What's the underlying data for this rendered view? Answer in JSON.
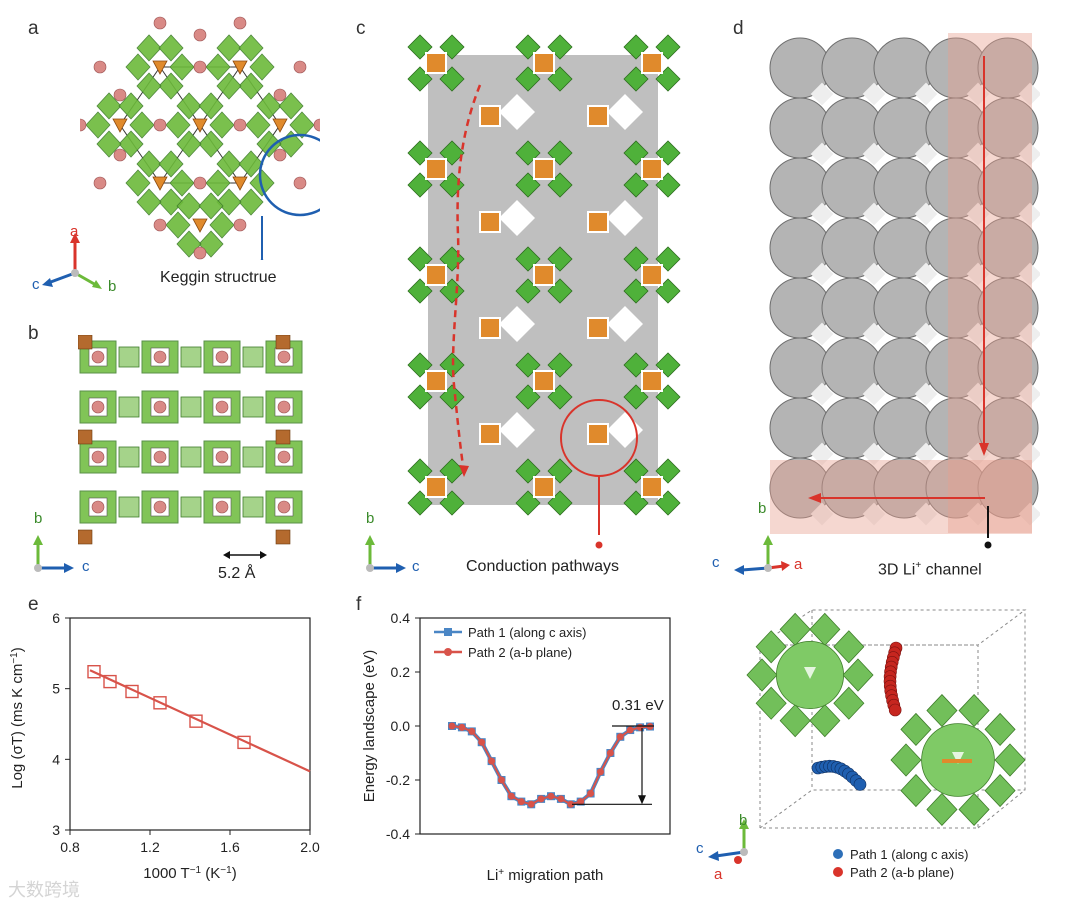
{
  "panels": {
    "a": {
      "label": "a",
      "caption": "Keggin structrue",
      "axes": {
        "up": "a",
        "left": "c",
        "right": "b"
      }
    },
    "b": {
      "label": "b",
      "measure": "5.2 Å",
      "axes": {
        "up": "b",
        "right": "c"
      }
    },
    "c": {
      "label": "c",
      "caption": "Conduction pathways",
      "axes": {
        "up": "b",
        "right": "c"
      }
    },
    "d": {
      "label": "d",
      "caption_prefix": "3D Li",
      "caption_sup": "+",
      "caption_suffix": " channel",
      "axes": {
        "up": "b",
        "left": "c",
        "right": "a"
      }
    },
    "g": {
      "axes": {
        "up": "b",
        "left": "c",
        "down": "a"
      },
      "legend": [
        "Path 1 (along c axis)",
        "Path 2 (a-b plane)"
      ]
    }
  },
  "colors": {
    "red": "#d9342b",
    "blue": "#1f5fb0",
    "green": "#6cba3a",
    "orange": "#e08a2c",
    "pink": "#d98a86",
    "gray": "#9a9a9a"
  },
  "chart_data": [
    {
      "panel": "e",
      "type": "scatter",
      "xlabel": "1000 T⁻¹ (K⁻¹)",
      "ylabel": "Log (σT) (ms K cm⁻¹)",
      "xlim": [
        0.8,
        2.0
      ],
      "ylim": [
        3,
        6
      ],
      "xticks": [
        "0.8",
        "1.2",
        "1.6",
        "2.0"
      ],
      "yticks": [
        "3",
        "4",
        "5",
        "6"
      ],
      "x": [
        0.92,
        1.0,
        1.11,
        1.25,
        1.43,
        1.67
      ],
      "y": [
        5.24,
        5.1,
        4.96,
        4.8,
        4.54,
        4.24
      ],
      "fit_line": {
        "x": [
          0.9,
          2.0
        ],
        "y": [
          5.26,
          3.83
        ]
      }
    },
    {
      "panel": "f",
      "type": "line",
      "xlabel_prefix": "Li",
      "xlabel_sup": "+",
      "xlabel_suffix": " migration path",
      "ylabel": "Energy landscape (eV)",
      "ylim": [
        -0.4,
        0.4
      ],
      "yticks": [
        "0.4",
        "0.2",
        "0.0",
        "-0.2",
        "-0.4"
      ],
      "annotation": "0.31 eV",
      "series": [
        {
          "name": "Path 1 (along c axis)",
          "color": "#4a86c5",
          "values": [
            0.0,
            -0.005,
            -0.02,
            -0.06,
            -0.13,
            -0.2,
            -0.26,
            -0.28,
            -0.29,
            -0.27,
            -0.26,
            -0.27,
            -0.29,
            -0.28,
            -0.25,
            -0.17,
            -0.1,
            -0.04,
            -0.015,
            -0.005,
            -0.002
          ]
        },
        {
          "name": "Path 2 (a-b plane)",
          "color": "#d8534a",
          "values": [
            0.0,
            -0.005,
            -0.02,
            -0.06,
            -0.13,
            -0.2,
            -0.26,
            -0.28,
            -0.29,
            -0.27,
            -0.26,
            -0.27,
            -0.29,
            -0.28,
            -0.25,
            -0.17,
            -0.1,
            -0.04,
            -0.015,
            -0.005,
            -0.002
          ]
        }
      ]
    }
  ],
  "watermark": "大数跨境"
}
